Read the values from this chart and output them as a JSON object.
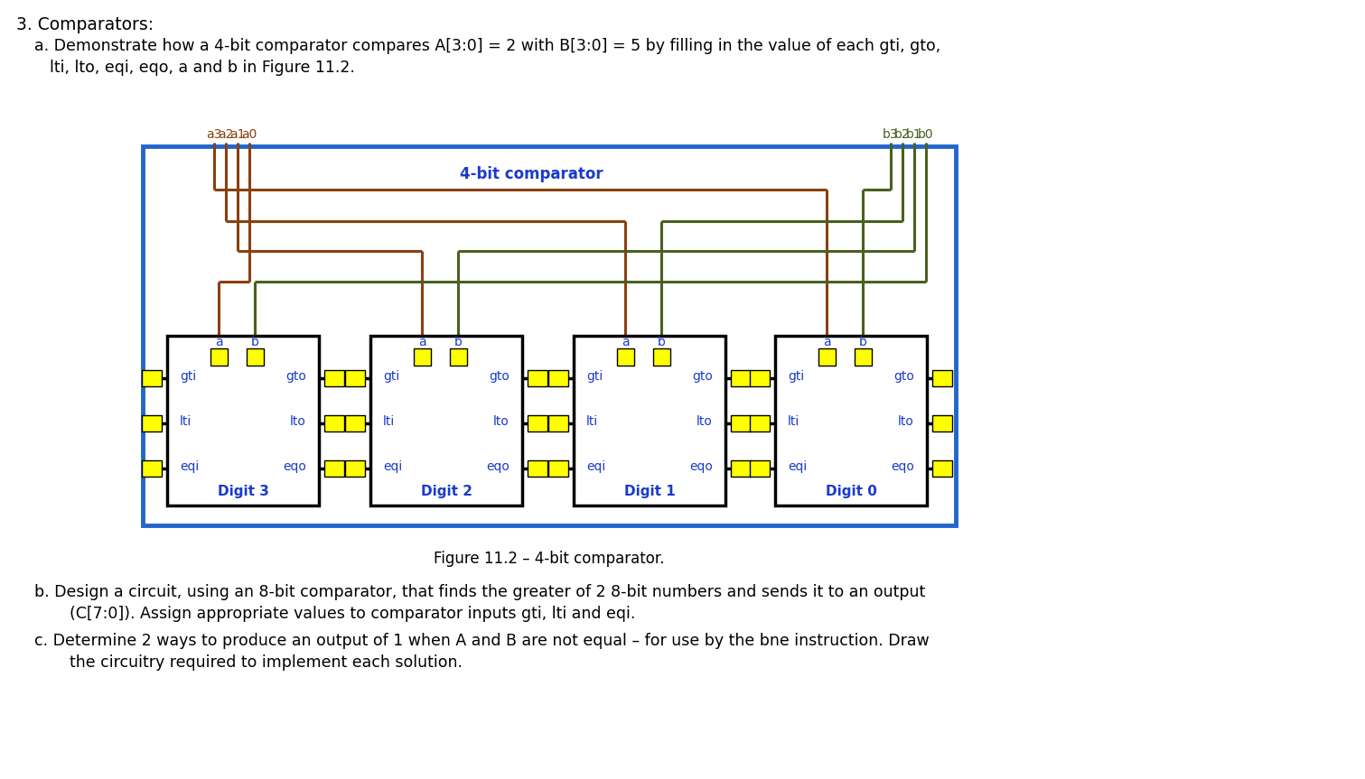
{
  "title_main": "3. Comparators:",
  "text_a": "a. Demonstrate how a 4-bit comparator compares A[3:0] = 2 with B[3:0] = 5 by filling in the value of each gti, gto,",
  "text_a2": "    lti, lto, eqi, eqo, a and b in Figure 11.2.",
  "text_b": "b. Design a circuit, using an 8-bit comparator, that finds the greater of 2 8-bit numbers and sends it to an output",
  "text_b2": "    (C[7:0]). Assign appropriate values to comparator inputs gti, lti and eqi.",
  "text_c": "c. Determine 2 ways to produce an output of 1 when A and B are not equal – for use by the bne instruction. Draw",
  "text_c2": "    the circuitry required to implement each solution.",
  "fig_caption": "Figure 11.2 – 4-bit comparator.",
  "outer_box_color": "#2266cc",
  "inner_box_color": "#000000",
  "wire_color_a": "#8B4010",
  "wire_color_b": "#4a6020",
  "text_color_blue": "#1a3acc",
  "yellow": "#FFFF00",
  "digits": [
    "Digit 3",
    "Digit 2",
    "Digit 1",
    "Digit 0"
  ],
  "label_a_inputs": [
    "a3",
    "a2",
    "a1",
    "a0"
  ],
  "label_b_inputs": [
    "b3",
    "b2",
    "b1",
    "b0"
  ]
}
